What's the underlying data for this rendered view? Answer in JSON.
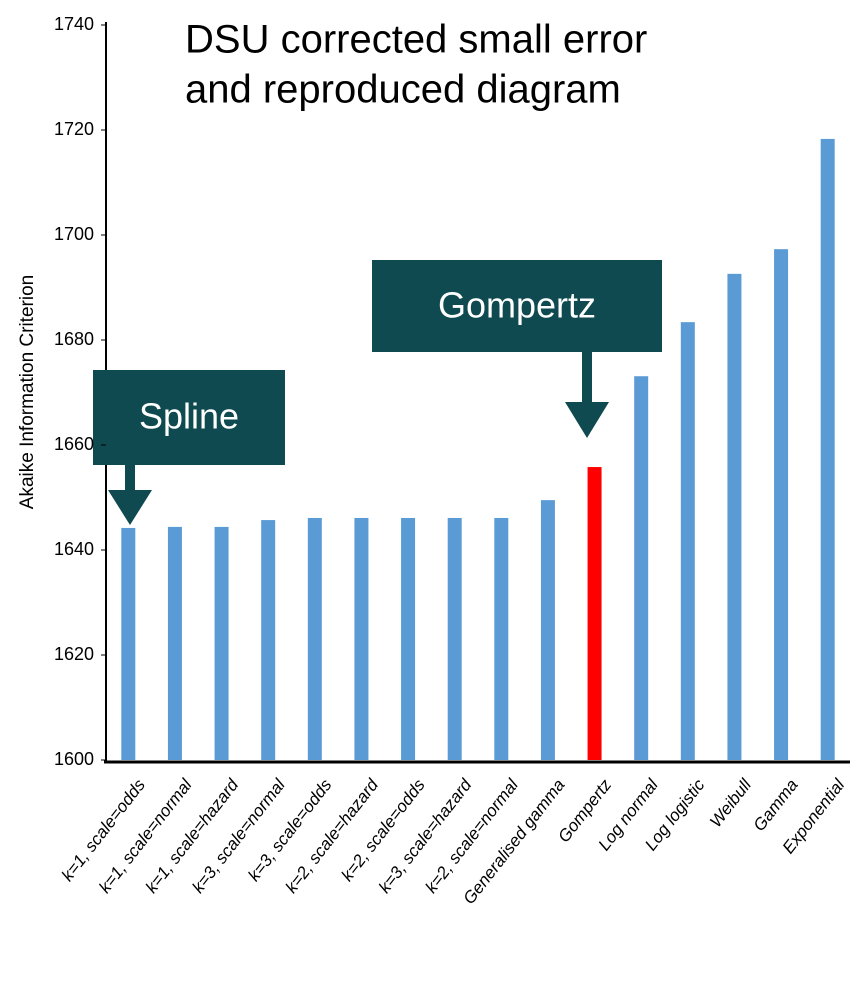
{
  "chart_data": {
    "type": "bar",
    "title": [
      "DSU corrected small error",
      "and reproduced diagram"
    ],
    "y_label": "Akaike Information Criterion",
    "categories": [
      "k=1, scale=odds",
      "k=1, scale=normal",
      "k=1, scale=hazard",
      "k=3, scale=normal",
      "k=3, scale=odds",
      "k=2, scale=hazard",
      "k=2, scale=odds",
      "k=3, scale=hazard",
      "k=2, scale=normal",
      "Generalised gamma",
      "Gompertz",
      "Log normal",
      "Log logistic",
      "Weibull",
      "Gamma",
      "Exponential"
    ],
    "values": [
      1644.2,
      1644.4,
      1644.4,
      1645.7,
      1646.1,
      1646.1,
      1646.1,
      1646.1,
      1646.1,
      1649.5,
      1655.8,
      1673.1,
      1683.4,
      1692.6,
      1697.3,
      1718.3
    ],
    "colors": [
      "#5b9bd5",
      "#5b9bd5",
      "#5b9bd5",
      "#5b9bd5",
      "#5b9bd5",
      "#5b9bd5",
      "#5b9bd5",
      "#5b9bd5",
      "#5b9bd5",
      "#5b9bd5",
      "#ff0000",
      "#5b9bd5",
      "#5b9bd5",
      "#5b9bd5",
      "#5b9bd5",
      "#5b9bd5"
    ],
    "ylim": [
      1600,
      1740
    ],
    "yticks": [
      1600,
      1620,
      1640,
      1660,
      1680,
      1700,
      1720,
      1740
    ],
    "annotations": [
      "Spline",
      "Gompertz"
    ]
  }
}
